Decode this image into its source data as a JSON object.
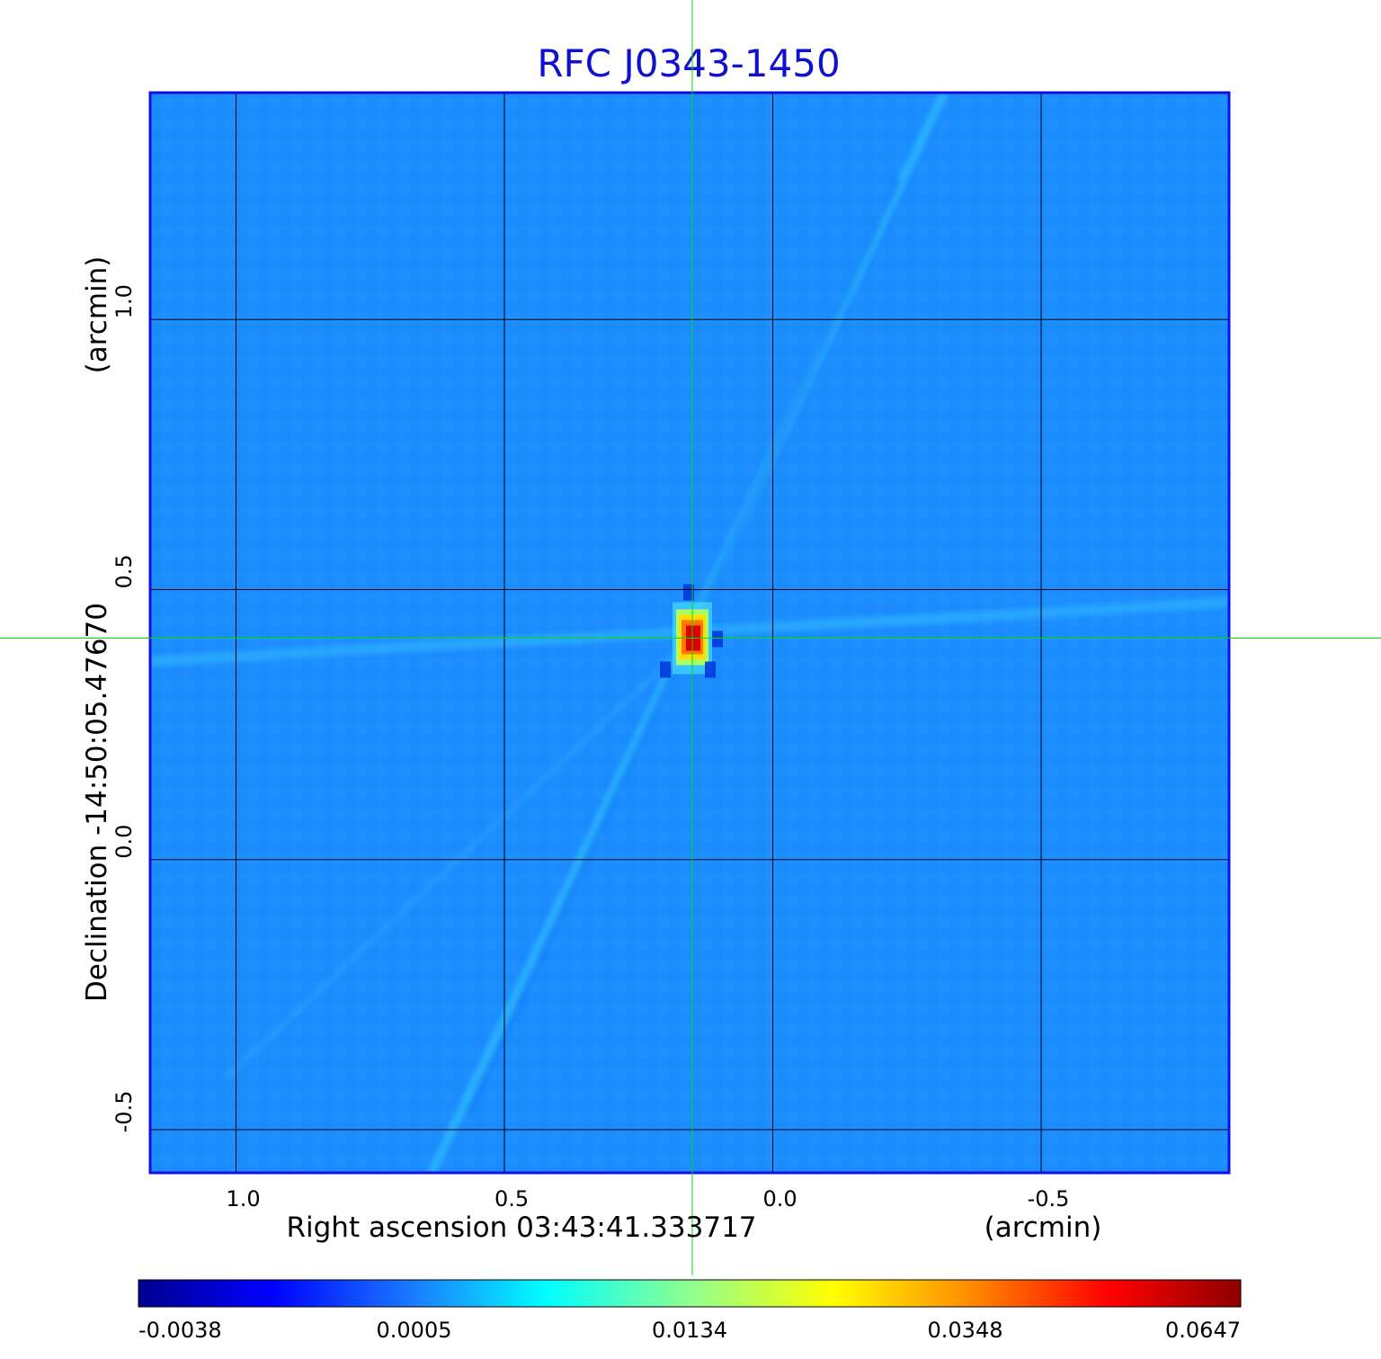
{
  "chart_data": {
    "type": "heatmap",
    "title": "RFC J0343-1450",
    "xlabel": "Right ascension  03:43:41.333717",
    "xlabel_unit": "(arcmin)",
    "ylabel": "Declination  -14:50:05.47670",
    "ylabel_unit": "(arcmin)",
    "x_ticks": [
      "1.0",
      "0.5",
      "0.0",
      "-0.5"
    ],
    "x_tick_values": [
      1.0,
      0.5,
      0.0,
      -0.5
    ],
    "y_ticks": [
      "1.0",
      "0.5",
      "0.0",
      "-0.5"
    ],
    "y_tick_values": [
      1.0,
      0.5,
      0.0,
      -0.5
    ],
    "xlim": [
      1.16,
      -0.85
    ],
    "ylim": [
      -0.58,
      1.42
    ],
    "grid": true,
    "source": {
      "x": 0.15,
      "y": 0.41,
      "peak": 0.0647
    },
    "crosshair": {
      "x": 0.15,
      "y": 0.41
    },
    "colorbar": {
      "ticks": [
        "-0.0038",
        "0.0005",
        "0.0134",
        "0.0348",
        "0.0647"
      ],
      "colormap": "jet"
    },
    "colors": {
      "title": "#1010d0",
      "background_field": "#1a8cff",
      "crosshair": "#00e000",
      "frame": "#1010e0",
      "grid": "#000000"
    }
  }
}
